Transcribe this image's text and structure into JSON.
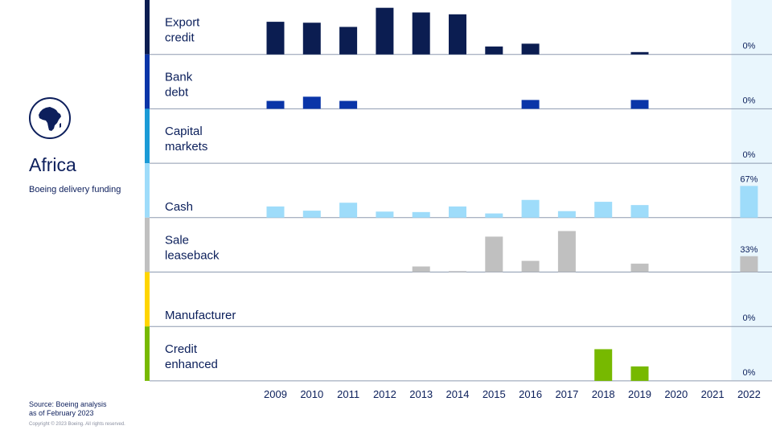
{
  "sidebar": {
    "region": "Africa",
    "subtitle": "Boeing delivery funding",
    "source_line1": "Source: Boeing analysis",
    "source_line2": "as of February 2023",
    "copyright": "Copyright © 2023 Boeing. All rights reserved."
  },
  "colors": {
    "highlight_band": "#e9f6fd",
    "row_line": "#8d9aaf"
  },
  "chart_data": {
    "type": "bar",
    "layout": "small-multiples",
    "categories": [
      "2009",
      "2010",
      "2011",
      "2012",
      "2013",
      "2014",
      "2015",
      "2016",
      "2017",
      "2018",
      "2019",
      "2020",
      "2021",
      "2022"
    ],
    "highlight_category": "2022",
    "series": [
      {
        "name": "Export credit",
        "label_lines": [
          "Export",
          "credit"
        ],
        "color": "#0b1d51",
        "accent": "#0b1d51",
        "values": [
          0.7,
          0.68,
          0.59,
          1.0,
          0.9,
          0.86,
          0.17,
          0.23,
          0,
          0,
          0.05,
          0,
          0,
          0
        ],
        "pct_2022": "0%"
      },
      {
        "name": "Bank debt",
        "label_lines": [
          "Bank",
          "debt"
        ],
        "color": "#0a35a8",
        "accent": "#0a35a8",
        "values": [
          0.17,
          0.26,
          0.17,
          0,
          0,
          0,
          0,
          0.19,
          0,
          0,
          0.19,
          0,
          0,
          0
        ],
        "pct_2022": "0%"
      },
      {
        "name": "Capital markets",
        "label_lines": [
          "Capital",
          "markets"
        ],
        "color": "#1a9ad6",
        "accent": "#1a9ad6",
        "values": [
          0,
          0,
          0,
          0,
          0,
          0,
          0,
          0,
          0,
          0,
          0,
          0,
          0,
          0
        ],
        "pct_2022": "0%"
      },
      {
        "name": "Cash",
        "label_lines": [
          "Cash"
        ],
        "color": "#9edcfa",
        "accent": "#9edcfa",
        "values": [
          0.24,
          0.15,
          0.32,
          0.13,
          0.12,
          0.24,
          0.09,
          0.38,
          0.14,
          0.34,
          0.27,
          0,
          0,
          0.68
        ],
        "pct_2022": "67%"
      },
      {
        "name": "Sale leaseback",
        "label_lines": [
          "Sale",
          "leaseback"
        ],
        "color": "#c0c0c0",
        "accent": "#c0c0c0",
        "values": [
          0,
          0,
          0,
          0,
          0.12,
          0.02,
          0.76,
          0.24,
          0.88,
          0,
          0.18,
          0,
          0,
          0.34
        ],
        "pct_2022": "33%"
      },
      {
        "name": "Manufacturer",
        "label_lines": [
          "Manufacturer"
        ],
        "color": "#ffd500",
        "accent": "#ffd500",
        "values": [
          0,
          0,
          0,
          0,
          0,
          0,
          0,
          0,
          0,
          0,
          0,
          0,
          0,
          0
        ],
        "pct_2022": "0%"
      },
      {
        "name": "Credit enhanced",
        "label_lines": [
          "Credit",
          "enhanced"
        ],
        "color": "#77b900",
        "accent": "#77b900",
        "values": [
          0,
          0,
          0,
          0,
          0,
          0,
          0,
          0,
          0,
          0.68,
          0.31,
          0,
          0,
          0
        ],
        "pct_2022": "0%"
      }
    ],
    "value_note": "bar heights relative to tallest bar, read by eye; no value axis printed"
  }
}
